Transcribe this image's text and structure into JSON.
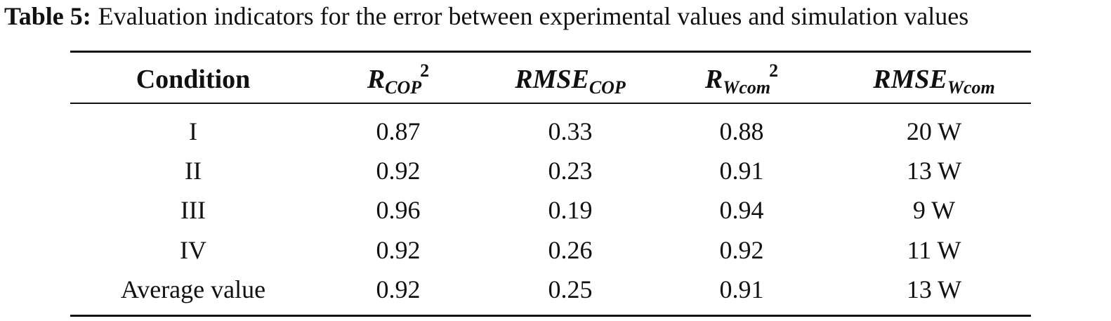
{
  "caption": {
    "label": "Table 5:",
    "text": "Evaluation indicators for the error between experimental values and simulation values"
  },
  "table": {
    "headers": [
      {
        "base": "Condition"
      },
      {
        "base": "R",
        "sub": "COP",
        "sup": "2"
      },
      {
        "base": "RMSE",
        "sub": "COP"
      },
      {
        "base": "R",
        "sub": "Wcom",
        "sup": "2"
      },
      {
        "base": "RMSE",
        "sub": "Wcom"
      }
    ],
    "rows": [
      [
        "I",
        "0.87",
        "0.33",
        "0.88",
        "20 W"
      ],
      [
        "II",
        "0.92",
        "0.23",
        "0.91",
        "13 W"
      ],
      [
        "III",
        "0.96",
        "0.19",
        "0.94",
        "9 W"
      ],
      [
        "IV",
        "0.92",
        "0.26",
        "0.92",
        "11 W"
      ],
      [
        "Average value",
        "0.92",
        "0.25",
        "0.91",
        "13 W"
      ]
    ]
  }
}
